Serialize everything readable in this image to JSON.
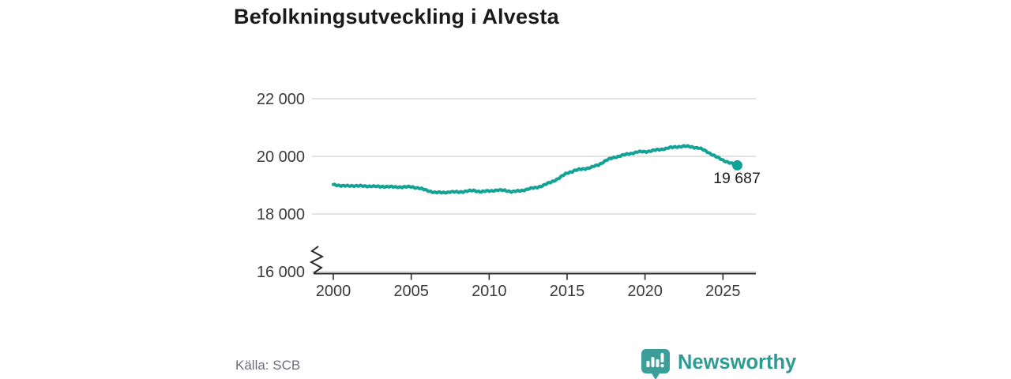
{
  "title": "Befolkningsutveckling i Alvesta",
  "source": "Källa: SCB",
  "branding": {
    "name": "Newsworthy",
    "text_color": "#2e9a94",
    "icon_color": "#3b9e98",
    "icon": "newsworthy-speech-bubble-bar-chart-icon"
  },
  "colors": {
    "line": "#12a296",
    "grid": "#d9d9d9",
    "axis": "#2b2b2b",
    "tick_label": "#3a3a3a",
    "title_text": "#1a1a1a"
  },
  "chart_data": {
    "type": "line",
    "title": "Befolkningsutveckling i Alvesta",
    "xlabel": "",
    "ylabel": "",
    "x_ticks": [
      2000,
      2005,
      2010,
      2015,
      2020,
      2025
    ],
    "y_ticks": [
      16000,
      18000,
      20000,
      22000
    ],
    "y_tick_labels": [
      "16 000",
      "18 000",
      "20 000",
      "22 000"
    ],
    "xlim": [
      1998.6,
      2027.1
    ],
    "ylim": [
      16000,
      22000
    ],
    "axis_break_at_bottom": true,
    "grid": "horizontal",
    "legend": "none",
    "end_value": 19687,
    "end_label": "19 687",
    "series": [
      {
        "name": "Befolkning i Alvesta",
        "color": "#12a296",
        "points": [
          [
            2000.0,
            19010
          ],
          [
            2000.5,
            18990
          ],
          [
            2001.0,
            18965
          ],
          [
            2001.5,
            18990
          ],
          [
            2002.0,
            18955
          ],
          [
            2002.5,
            18975
          ],
          [
            2003.0,
            18940
          ],
          [
            2003.5,
            18960
          ],
          [
            2004.0,
            18925
          ],
          [
            2004.5,
            18945
          ],
          [
            2005.0,
            18935
          ],
          [
            2005.5,
            18905
          ],
          [
            2006.0,
            18810
          ],
          [
            2006.5,
            18755
          ],
          [
            2007.0,
            18735
          ],
          [
            2007.5,
            18770
          ],
          [
            2008.0,
            18755
          ],
          [
            2008.5,
            18790
          ],
          [
            2009.0,
            18810
          ],
          [
            2009.5,
            18775
          ],
          [
            2010.0,
            18795
          ],
          [
            2010.5,
            18830
          ],
          [
            2011.0,
            18815
          ],
          [
            2011.5,
            18775
          ],
          [
            2012.0,
            18800
          ],
          [
            2012.5,
            18870
          ],
          [
            2013.0,
            18910
          ],
          [
            2013.5,
            19000
          ],
          [
            2014.0,
            19110
          ],
          [
            2014.5,
            19250
          ],
          [
            2015.0,
            19420
          ],
          [
            2015.5,
            19510
          ],
          [
            2016.0,
            19560
          ],
          [
            2016.5,
            19610
          ],
          [
            2017.0,
            19700
          ],
          [
            2017.5,
            19860
          ],
          [
            2018.0,
            19960
          ],
          [
            2018.5,
            20030
          ],
          [
            2019.0,
            20090
          ],
          [
            2019.5,
            20150
          ],
          [
            2020.0,
            20160
          ],
          [
            2020.5,
            20200
          ],
          [
            2021.0,
            20240
          ],
          [
            2021.5,
            20290
          ],
          [
            2022.0,
            20330
          ],
          [
            2022.5,
            20350
          ],
          [
            2023.0,
            20330
          ],
          [
            2023.5,
            20280
          ],
          [
            2024.0,
            20160
          ],
          [
            2024.5,
            20000
          ],
          [
            2025.0,
            19870
          ],
          [
            2025.5,
            19760
          ],
          [
            2025.92,
            19687
          ]
        ]
      }
    ]
  }
}
